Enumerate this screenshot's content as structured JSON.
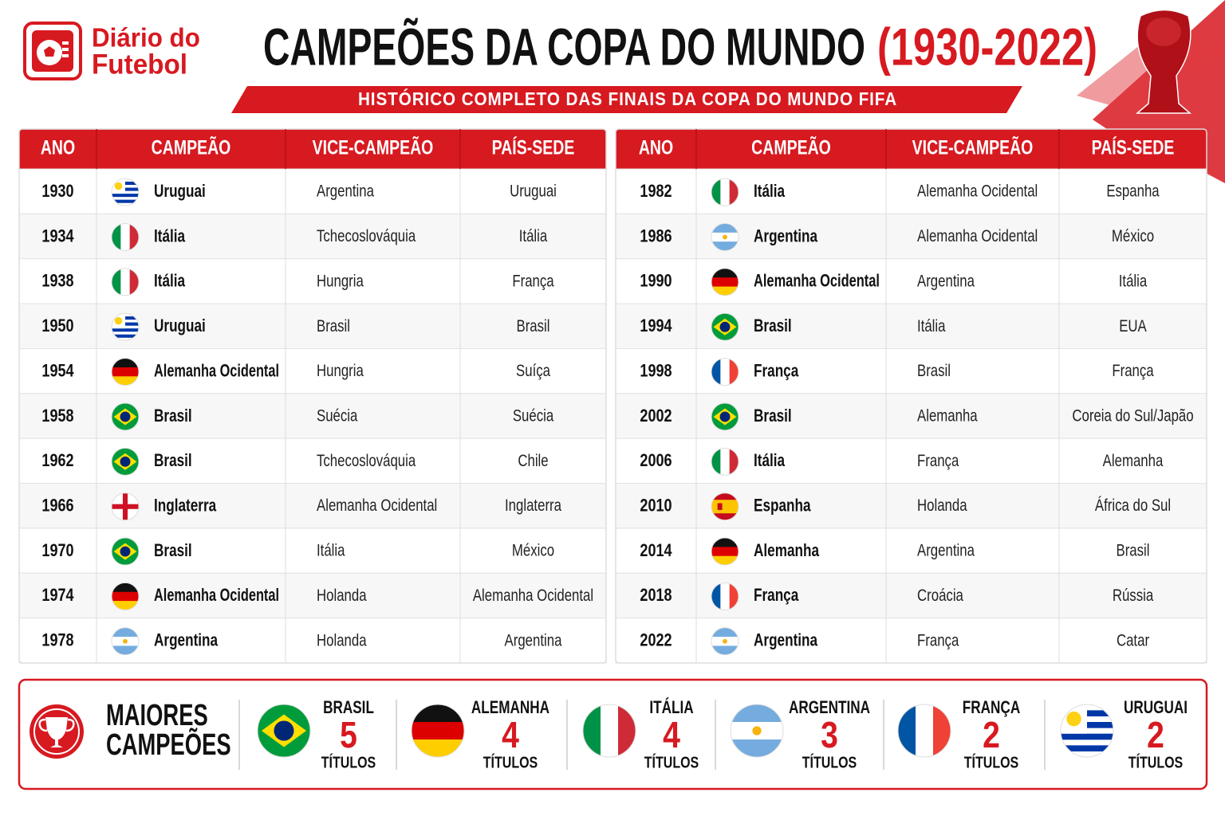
{
  "logo": {
    "line1": "Diário do",
    "line2": "Futebol"
  },
  "header": {
    "title": "CAMPEÕES DA COPA DO MUNDO",
    "title_years": "(1930-2022)",
    "subtitle": "HISTÓRICO COMPLETO DAS FINAIS DA COPA DO MUNDO FIFA"
  },
  "tables": [
    {
      "columns": [
        "ANO",
        "CAMPEÃO",
        "VICE-CAMPEÃO",
        "PAÍS-SEDE"
      ],
      "rows": [
        [
          1930,
          "Uruguai",
          "Argentina",
          "Uruguai"
        ],
        [
          1934,
          "Itália",
          "Tchecoslováquia",
          "Itália"
        ],
        [
          1938,
          "Itália",
          "Hungria",
          "França"
        ],
        [
          1950,
          "Uruguai",
          "Brasil",
          "Brasil"
        ],
        [
          1954,
          "Alemanha Ocidental",
          "Hungria",
          "Suíça"
        ],
        [
          1958,
          "Brasil",
          "Suécia",
          "Suécia"
        ],
        [
          1962,
          "Brasil",
          "Tchecoslováquia",
          "Chile"
        ],
        [
          1966,
          "Inglaterra",
          "Alemanha Ocidental",
          "Inglaterra"
        ],
        [
          1970,
          "Brasil",
          "Itália",
          "México"
        ],
        [
          1974,
          "Alemanha Ocidental",
          "Holanda",
          "Alemanha Ocidental"
        ],
        [
          1978,
          "Argentina",
          "Holanda",
          "Argentina"
        ]
      ]
    },
    {
      "columns": [
        "ANO",
        "CAMPEÃO",
        "VICE-CAMPEÃO",
        "PAÍS-SEDE"
      ],
      "rows": [
        [
          1982,
          "Itália",
          "Alemanha Ocidental",
          "Espanha"
        ],
        [
          1986,
          "Argentina",
          "Alemanha Ocidental",
          "México"
        ],
        [
          1990,
          "Alemanha Ocidental",
          "Argentina",
          "Itália"
        ],
        [
          1994,
          "Brasil",
          "Itália",
          "EUA"
        ],
        [
          1998,
          "França",
          "Brasil",
          "França"
        ],
        [
          2002,
          "Brasil",
          "Alemanha",
          "Coreia do Sul/Japão"
        ],
        [
          2006,
          "Itália",
          "França",
          "Alemanha"
        ],
        [
          2010,
          "Espanha",
          "Holanda",
          "África do Sul"
        ],
        [
          2014,
          "Alemanha",
          "Argentina",
          "Brasil"
        ],
        [
          2018,
          "França",
          "Croácia",
          "Rússia"
        ],
        [
          2022,
          "Argentina",
          "França",
          "Catar"
        ]
      ]
    }
  ],
  "summary": {
    "title_line1": "MAIORES",
    "title_line2": "CAMPEÕES",
    "items": [
      {
        "country": "BRASIL",
        "titles": 5,
        "unit": "TÍTULOS"
      },
      {
        "country": "ALEMANHA",
        "titles": 4,
        "unit": "TÍTULOS"
      },
      {
        "country": "ITÁLIA",
        "titles": 4,
        "unit": "TÍTULOS"
      },
      {
        "country": "ARGENTINA",
        "titles": 3,
        "unit": "TÍTULOS"
      },
      {
        "country": "FRANÇA",
        "titles": 2,
        "unit": "TÍTULOS"
      },
      {
        "country": "URUGUAI",
        "titles": 2,
        "unit": "TÍTULOS"
      }
    ]
  }
}
